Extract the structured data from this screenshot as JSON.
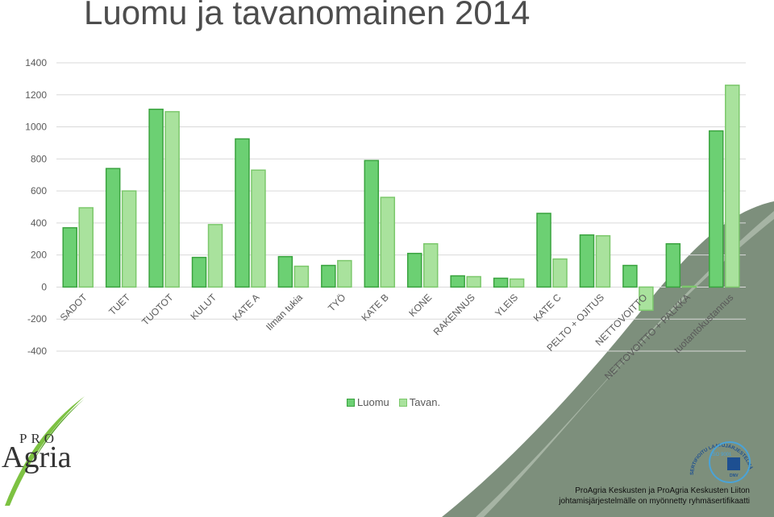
{
  "title": "Luomu ja tavanomainen 2014",
  "chart_data": {
    "type": "bar",
    "categories": [
      "SADOT",
      "TUET",
      "TUOTOT",
      "KULUT",
      "KATE A",
      "Ilman tukia",
      "TYÖ",
      "KATE B",
      "KONE",
      "RAKENNUS",
      "YLEIS",
      "KATE C",
      "PELTO + OJITUS",
      "NETTOVOITTO",
      "NETTOVOITTO + PALKKA",
      "tuotantokustannus"
    ],
    "series": [
      {
        "name": "Luomu",
        "values": [
          370,
          740,
          1110,
          185,
          925,
          190,
          135,
          790,
          210,
          70,
          55,
          460,
          325,
          135,
          270,
          975
        ],
        "color": "#6cd073"
      },
      {
        "name": "Tavan.",
        "values": [
          495,
          600,
          1095,
          390,
          730,
          130,
          165,
          560,
          270,
          65,
          50,
          175,
          320,
          -145,
          5,
          1260
        ],
        "color": "#a9e29d"
      }
    ],
    "ylim": [
      -400,
      1400
    ],
    "yticks": [
      -400,
      -200,
      0,
      200,
      400,
      600,
      800,
      1000,
      1200,
      1400
    ],
    "grid": true,
    "legend": "bottom"
  },
  "logo": {
    "pro": "PRO",
    "agria": "Agria"
  },
  "certificate": {
    "ring": "SERTIFIOITU LAATUJÄRJESTELMÄ",
    "iso": "ISO 9001",
    "dnv": "DNV"
  },
  "footer": {
    "line1": "ProAgria Keskusten ja ProAgria Keskusten Liiton",
    "line2": "johtamisjärjestelmälle on myönnetty ryhmäsertifikaatti"
  }
}
